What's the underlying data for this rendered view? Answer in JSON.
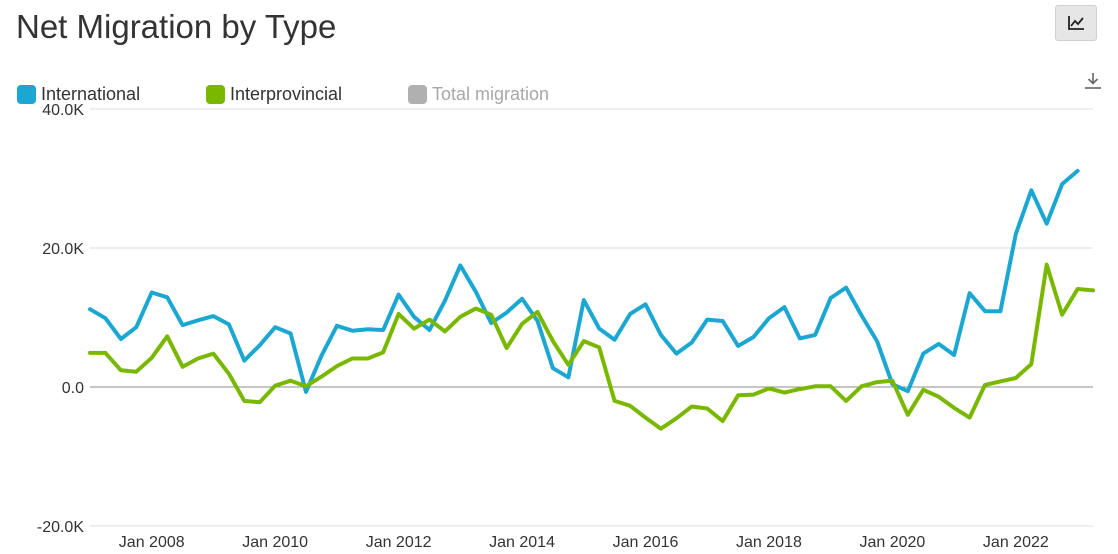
{
  "title": "Net Migration by Type",
  "toolbar": {
    "chart_icon": "line-chart-icon",
    "download_icon": "download-icon"
  },
  "legend": [
    {
      "label": "International",
      "color": "#1ba7d1",
      "active": true
    },
    {
      "label": "Interprovincial",
      "color": "#7ab800",
      "active": true
    },
    {
      "label": "Total migration",
      "color": "#b0b0b0",
      "active": false
    }
  ],
  "chart_data": {
    "type": "line",
    "title": "Net Migration by Type",
    "xlabel": "",
    "ylabel": "",
    "ylim": [
      -20000,
      40000
    ],
    "y_ticks": [
      {
        "value": 40000,
        "label": "40.0K"
      },
      {
        "value": 20000,
        "label": "20.0K"
      },
      {
        "value": 0,
        "label": "0.0"
      },
      {
        "value": -20000,
        "label": "-20.0K"
      }
    ],
    "x_ticks": [
      {
        "index": 4,
        "label": "Jan 2008"
      },
      {
        "index": 12,
        "label": "Jan 2010"
      },
      {
        "index": 20,
        "label": "Jan 2012"
      },
      {
        "index": 28,
        "label": "Jan 2014"
      },
      {
        "index": 36,
        "label": "Jan 2016"
      },
      {
        "index": 44,
        "label": "Jan 2018"
      },
      {
        "index": 52,
        "label": "Jan 2020"
      },
      {
        "index": 60,
        "label": "Jan 2022"
      }
    ],
    "x": [
      "Q1 2007",
      "Q2 2007",
      "Q3 2007",
      "Q4 2007",
      "Q1 2008",
      "Q2 2008",
      "Q3 2008",
      "Q4 2008",
      "Q1 2009",
      "Q2 2009",
      "Q3 2009",
      "Q4 2009",
      "Q1 2010",
      "Q2 2010",
      "Q3 2010",
      "Q4 2010",
      "Q1 2011",
      "Q2 2011",
      "Q3 2011",
      "Q4 2011",
      "Q1 2012",
      "Q2 2012",
      "Q3 2012",
      "Q4 2012",
      "Q1 2013",
      "Q2 2013",
      "Q3 2013",
      "Q4 2013",
      "Q1 2014",
      "Q2 2014",
      "Q3 2014",
      "Q4 2014",
      "Q1 2015",
      "Q2 2015",
      "Q3 2015",
      "Q4 2015",
      "Q1 2016",
      "Q2 2016",
      "Q3 2016",
      "Q4 2016",
      "Q1 2017",
      "Q2 2017",
      "Q3 2017",
      "Q4 2017",
      "Q1 2018",
      "Q2 2018",
      "Q3 2018",
      "Q4 2018",
      "Q1 2019",
      "Q2 2019",
      "Q3 2019",
      "Q4 2019",
      "Q1 2020",
      "Q2 2020",
      "Q3 2020",
      "Q4 2020",
      "Q1 2021",
      "Q2 2021",
      "Q3 2021",
      "Q4 2021",
      "Q1 2022",
      "Q2 2022",
      "Q3 2022",
      "Q4 2022",
      "Q1 2023",
      "Q2 2023"
    ],
    "series": [
      {
        "name": "International",
        "color": "#1ba7d1",
        "values": [
          11200,
          9900,
          6900,
          8600,
          13600,
          12900,
          8900,
          9600,
          10200,
          9000,
          3800,
          6000,
          8600,
          7700,
          -700,
          4500,
          8800,
          8100,
          8300,
          8200,
          13300,
          10100,
          8200,
          12400,
          17500,
          13700,
          9200,
          10700,
          12700,
          9500,
          2700,
          1400,
          12500,
          8400,
          6800,
          10500,
          11900,
          7500,
          4800,
          6400,
          9700,
          9500,
          5900,
          7200,
          9900,
          11500,
          7000,
          7500,
          12800,
          14300,
          10300,
          6600,
          400,
          -600,
          4800,
          6200,
          4600,
          13500,
          10900,
          10900,
          22000,
          28300,
          23500,
          29200,
          31100,
          null
        ]
      },
      {
        "name": "Interprovincial",
        "color": "#7ab800",
        "values": [
          4900,
          4900,
          2400,
          2200,
          4200,
          7300,
          2900,
          4100,
          4800,
          1900,
          -2000,
          -2200,
          200,
          900,
          100,
          1500,
          3000,
          4100,
          4100,
          5000,
          10500,
          8400,
          9700,
          8000,
          10100,
          11300,
          10400,
          5600,
          9100,
          10800,
          6600,
          3200,
          6600,
          5700,
          -2000,
          -2700,
          -4400,
          -6000,
          -4500,
          -2800,
          -3100,
          -4900,
          -1200,
          -1100,
          -200,
          -800,
          -300,
          100,
          100,
          -2000,
          100,
          700,
          900,
          -4000,
          -400,
          -1400,
          -3000,
          -4400,
          300,
          800,
          1300,
          3300,
          17600,
          10400,
          14100,
          13900
        ]
      }
    ]
  }
}
